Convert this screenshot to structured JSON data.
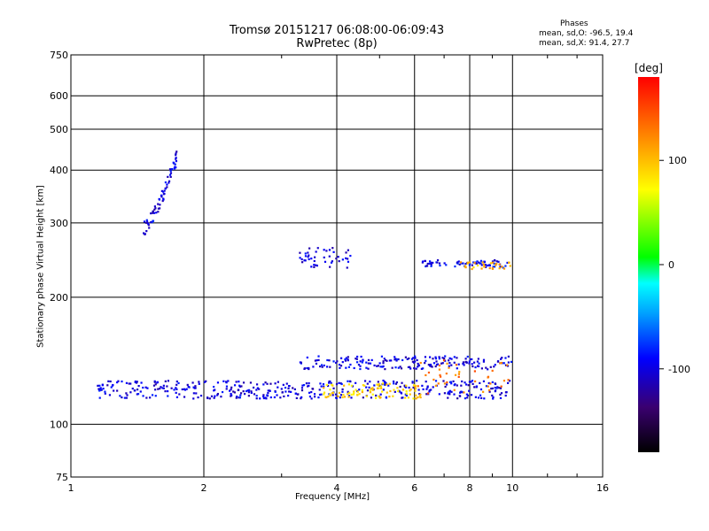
{
  "title": "Tromsø 20151217 06:08:00-06:09:43",
  "subtitle": "RwPretec (8p)",
  "phases": {
    "title": "Phases",
    "o_line": "mean, sd,O: -96.5, 19.4",
    "x_line": "mean, sd,X:  91.4, 27.7"
  },
  "colorbar": {
    "title": "[deg]",
    "ticks": [
      "100",
      "0",
      "-100"
    ],
    "tick_values": [
      100,
      0,
      -100
    ],
    "range": [
      -180,
      180
    ]
  },
  "chart_data": {
    "type": "scatter",
    "xlabel": "Frequency [MHz]",
    "ylabel": "Stationary phase Virtual Height [km]",
    "x_scale": "log",
    "y_scale": "log",
    "xlim": [
      1,
      16
    ],
    "ylim": [
      75,
      750
    ],
    "xticks": [
      1,
      2,
      4,
      6,
      8,
      10,
      16
    ],
    "yticks": [
      75,
      100,
      200,
      300,
      400,
      500,
      600,
      750
    ],
    "grid": true,
    "clusters": [
      {
        "name": "",
        "x": [
          1.46,
          1.75
        ],
        "y": [
          292,
          440
        ],
        "n": 70,
        "phase": -100,
        "kind": "curve"
      },
      {
        "name": "",
        "x": [
          1.15,
          10
        ],
        "y": [
          115,
          127
        ],
        "n": 420,
        "phase": -100,
        "kind": "band"
      },
      {
        "name": "",
        "x": [
          3.3,
          10
        ],
        "y": [
          135,
          145
        ],
        "n": 190,
        "phase": -100,
        "kind": "band"
      },
      {
        "name": "",
        "x": [
          3.7,
          6.2
        ],
        "y": [
          115,
          125
        ],
        "n": 90,
        "phase": 90,
        "kind": "band"
      },
      {
        "name": "",
        "x": [
          6.1,
          9.8
        ],
        "y": [
          118,
          143
        ],
        "n": 40,
        "phase": 130,
        "kind": "band"
      },
      {
        "name": "",
        "x": [
          3.2,
          4.3
        ],
        "y": [
          235,
          262
        ],
        "n": 45,
        "phase": -100,
        "kind": "band"
      },
      {
        "name": "",
        "x": [
          6.2,
          9.8
        ],
        "y": [
          235,
          245
        ],
        "n": 70,
        "phase": -95,
        "kind": "band"
      },
      {
        "name": "",
        "x": [
          7.6,
          10
        ],
        "y": [
          233,
          243
        ],
        "n": 30,
        "phase": 100,
        "kind": "band"
      }
    ]
  }
}
